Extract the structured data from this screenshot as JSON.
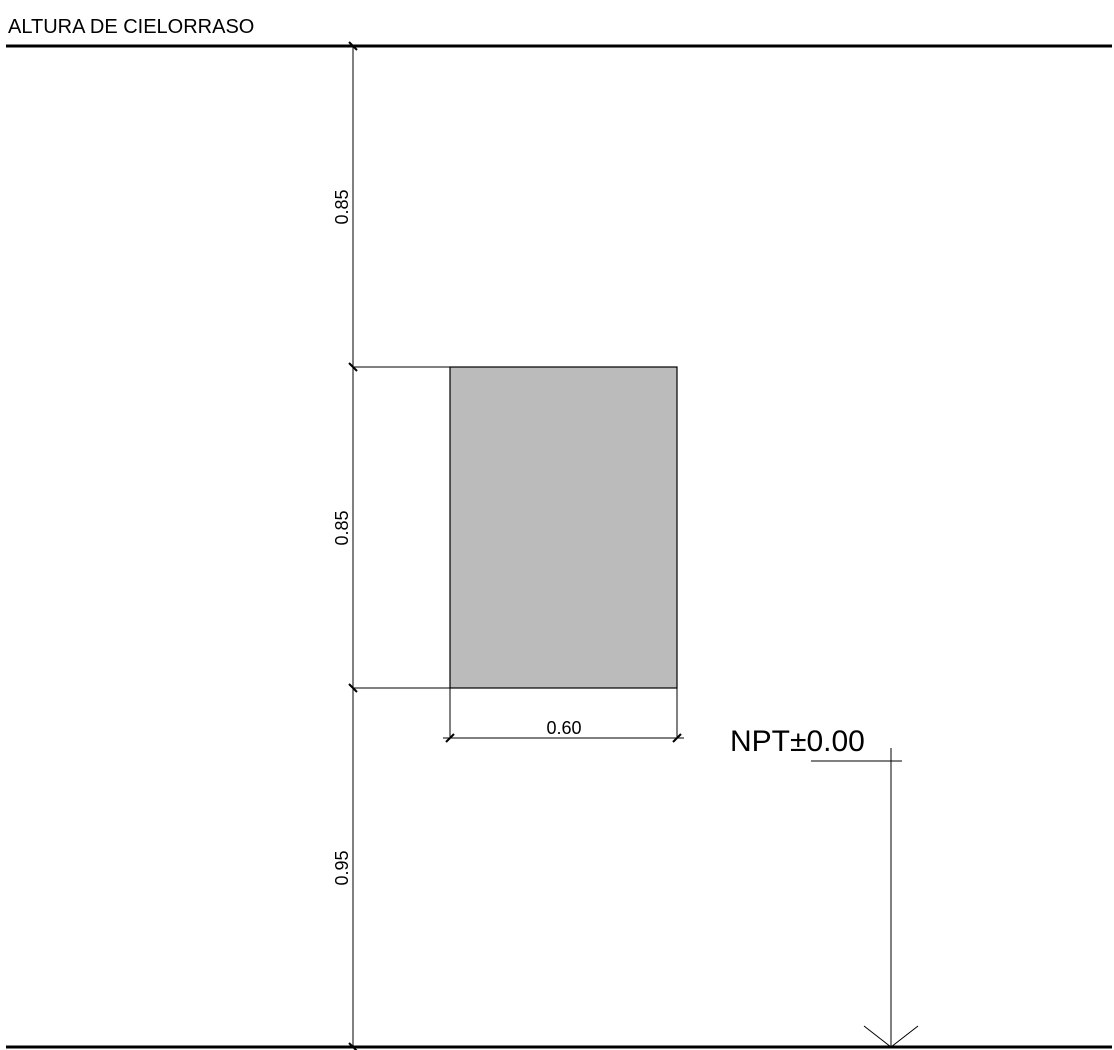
{
  "ceiling_label": "ALTURA DE CIELORRASO",
  "dimensions": {
    "vertical": [
      "0.85",
      "0.85",
      "0.95"
    ],
    "horizontal": "0.60"
  },
  "level_marker": "NPT±0.00",
  "colors": {
    "line": "#000000",
    "panel_fill": "#bbbbbb",
    "background": "#ffffff"
  }
}
